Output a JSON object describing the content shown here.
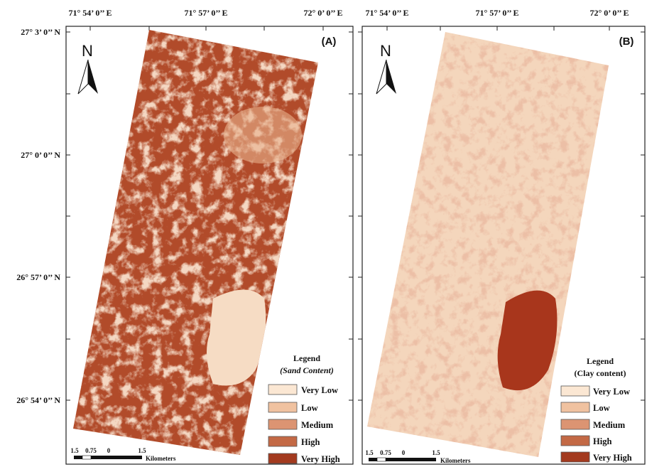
{
  "longitude_labels": [
    "71° 54’ 0’’ E",
    "71° 57’ 0’’ E",
    "72° 0’ 0’’ E"
  ],
  "latitude_labels": [
    "27° 3’ 0’’ N",
    "27° 0’ 0’’ N",
    "26° 57’ 0’’ N",
    "26° 54’ 0’’ N"
  ],
  "panels": [
    {
      "label": "(A)",
      "north": "N",
      "legend": {
        "title": "Legend",
        "subtitle": "(Sand Content)",
        "items": [
          "Very Low",
          "Low",
          "Medium",
          "High",
          "Very High"
        ]
      },
      "scale": {
        "labels": [
          "1.5",
          "0.75",
          "0",
          "1.5"
        ],
        "unit": "Kilometers"
      }
    },
    {
      "label": "(B)",
      "north": "N",
      "legend": {
        "title": "Legend",
        "subtitle": "(Clay content)",
        "items": [
          "Very Low",
          "Low",
          "Medium",
          "High",
          "Very High"
        ]
      },
      "scale": {
        "labels": [
          "1.5",
          "0.75",
          "0",
          "1.5"
        ],
        "unit": "Kilometers"
      }
    }
  ]
}
